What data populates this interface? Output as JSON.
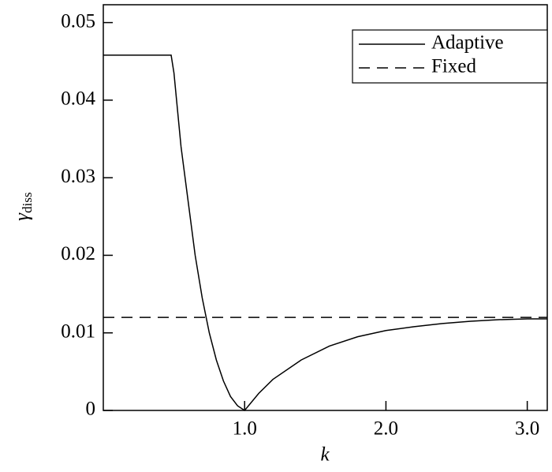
{
  "chart_data": {
    "type": "line",
    "x_label": "k",
    "y_label": "γ",
    "y_label_sub": "diss",
    "xlim": [
      0,
      3.1416
    ],
    "ylim": [
      0,
      0.0523
    ],
    "xticks": [
      {
        "value": 1,
        "label": "1.0"
      },
      {
        "value": 2,
        "label": "2.0"
      },
      {
        "value": 3,
        "label": "3.0"
      }
    ],
    "yticks": [
      0,
      0.01,
      0.02,
      0.03,
      0.04,
      0.05
    ],
    "legend": "top-right",
    "series": [
      {
        "name": "Adaptive",
        "color": "#000000",
        "dash": false,
        "x": [
          0,
          0.48,
          0.5,
          0.55,
          0.6,
          0.65,
          0.7,
          0.75,
          0.8,
          0.85,
          0.9,
          0.95,
          1.0,
          1.1,
          1.2,
          1.4,
          1.6,
          1.8,
          2.0,
          2.2,
          2.4,
          2.6,
          2.8,
          3.0,
          3.1416
        ],
        "values": [
          0.0458,
          0.0458,
          0.0435,
          0.034,
          0.027,
          0.02,
          0.0145,
          0.01,
          0.0065,
          0.0038,
          0.0018,
          0.0006,
          0,
          0.0022,
          0.004,
          0.0065,
          0.0083,
          0.0095,
          0.0103,
          0.0108,
          0.0112,
          0.0115,
          0.0117,
          0.0118,
          0.0118
        ]
      },
      {
        "name": "Fixed",
        "color": "#000000",
        "dash": true,
        "x": [
          0,
          3.1416
        ],
        "values": [
          0.012,
          0.012
        ]
      }
    ]
  }
}
